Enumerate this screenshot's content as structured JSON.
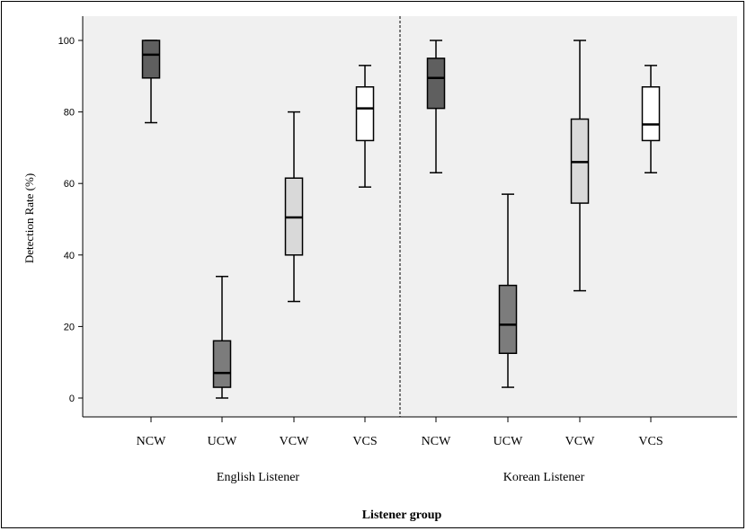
{
  "chart_data": {
    "type": "box",
    "xlabel": "Listener group",
    "ylabel": "Detection Rate (%)",
    "ylim": [
      -5,
      105
    ],
    "yticks": [
      0,
      20,
      40,
      60,
      80,
      100
    ],
    "groups": [
      "English Listener",
      "Korean Listener"
    ],
    "categories": [
      "NCW",
      "UCW",
      "VCW",
      "VCS"
    ],
    "boxes": [
      {
        "group": "English Listener",
        "category": "NCW",
        "min": 77,
        "q1": 89.5,
        "median": 96,
        "q3": 100,
        "max": 100,
        "color": "#5f5f5f"
      },
      {
        "group": "English Listener",
        "category": "UCW",
        "min": 0,
        "q1": 3,
        "median": 7,
        "q3": 16,
        "max": 34,
        "color": "#7c7c7c"
      },
      {
        "group": "English Listener",
        "category": "VCW",
        "min": 27,
        "q1": 40,
        "median": 50.5,
        "q3": 61.5,
        "max": 80,
        "color": "#d9d9d9"
      },
      {
        "group": "English Listener",
        "category": "VCS",
        "min": 59,
        "q1": 72,
        "median": 81,
        "q3": 87,
        "max": 93,
        "color": "#ffffff"
      },
      {
        "group": "Korean Listener",
        "category": "NCW",
        "min": 63,
        "q1": 81,
        "median": 89.5,
        "q3": 95,
        "max": 100,
        "color": "#5f5f5f"
      },
      {
        "group": "Korean Listener",
        "category": "UCW",
        "min": 3,
        "q1": 12.5,
        "median": 20.5,
        "q3": 31.5,
        "max": 57,
        "color": "#7c7c7c"
      },
      {
        "group": "Korean Listener",
        "category": "VCW",
        "min": 30,
        "q1": 54.5,
        "median": 66,
        "q3": 78,
        "max": 100,
        "color": "#d9d9d9"
      },
      {
        "group": "Korean Listener",
        "category": "VCS",
        "min": 63,
        "q1": 72,
        "median": 76.5,
        "q3": 87,
        "max": 93,
        "color": "#ffffff"
      }
    ]
  }
}
